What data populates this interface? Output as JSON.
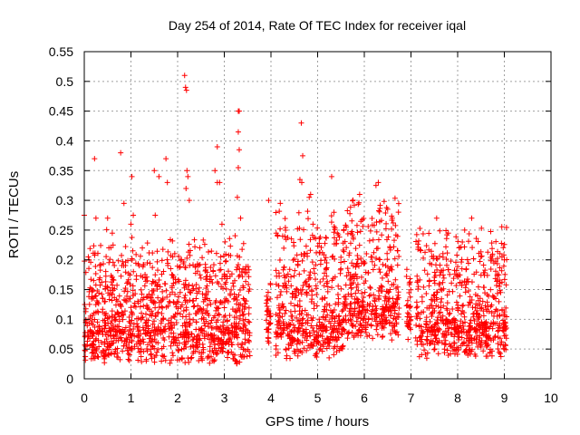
{
  "chart_data": {
    "type": "scatter",
    "title": "Day 254 of 2014, Rate Of TEC Index for receiver iqal",
    "xlabel": "GPS time / hours",
    "ylabel": "ROTI / TECUs",
    "xlim": [
      0,
      10
    ],
    "ylim": [
      0,
      0.55
    ],
    "x_ticks": [
      "0",
      "1",
      "2",
      "3",
      "4",
      "5",
      "6",
      "7",
      "8",
      "9",
      "10"
    ],
    "y_ticks": [
      "0",
      "0.05",
      "0.1",
      "0.15",
      "0.2",
      "0.25",
      "0.3",
      "0.35",
      "0.4",
      "0.45",
      "0.5",
      "0.55"
    ],
    "grid": true,
    "marker": "+",
    "color": "#ff0000",
    "series": [
      {
        "name": "ROTI",
        "segments": [
          {
            "start": 0.0,
            "end": 3.55,
            "base": 0.06,
            "spread": 0.17
          },
          {
            "start": 3.9,
            "end": 4.0,
            "base": 0.09,
            "spread": 0.05
          },
          {
            "start": 4.1,
            "end": 5.55,
            "base": 0.07,
            "spread": 0.2
          },
          {
            "start": 5.55,
            "end": 6.75,
            "base": 0.1,
            "spread": 0.2
          },
          {
            "start": 6.9,
            "end": 7.0,
            "base": 0.1,
            "spread": 0.08
          },
          {
            "start": 7.1,
            "end": 9.05,
            "base": 0.07,
            "spread": 0.17
          }
        ],
        "peaks": [
          {
            "x": 0.0,
            "y": 0.275
          },
          {
            "x": 0.1,
            "y": 0.2
          },
          {
            "x": 0.22,
            "y": 0.37
          },
          {
            "x": 0.25,
            "y": 0.27
          },
          {
            "x": 0.5,
            "y": 0.27
          },
          {
            "x": 0.6,
            "y": 0.245
          },
          {
            "x": 0.78,
            "y": 0.38
          },
          {
            "x": 0.85,
            "y": 0.295
          },
          {
            "x": 1.0,
            "y": 0.26
          },
          {
            "x": 1.02,
            "y": 0.34
          },
          {
            "x": 1.05,
            "y": 0.275
          },
          {
            "x": 1.5,
            "y": 0.35
          },
          {
            "x": 1.52,
            "y": 0.275
          },
          {
            "x": 1.6,
            "y": 0.34
          },
          {
            "x": 1.75,
            "y": 0.37
          },
          {
            "x": 1.78,
            "y": 0.33
          },
          {
            "x": 2.15,
            "y": 0.51
          },
          {
            "x": 2.17,
            "y": 0.49
          },
          {
            "x": 2.19,
            "y": 0.485
          },
          {
            "x": 2.2,
            "y": 0.35
          },
          {
            "x": 2.22,
            "y": 0.34
          },
          {
            "x": 2.18,
            "y": 0.32
          },
          {
            "x": 2.25,
            "y": 0.3
          },
          {
            "x": 2.85,
            "y": 0.39
          },
          {
            "x": 2.8,
            "y": 0.35
          },
          {
            "x": 2.85,
            "y": 0.33
          },
          {
            "x": 2.9,
            "y": 0.33
          },
          {
            "x": 2.95,
            "y": 0.26
          },
          {
            "x": 3.3,
            "y": 0.45
          },
          {
            "x": 3.32,
            "y": 0.45
          },
          {
            "x": 3.3,
            "y": 0.415
          },
          {
            "x": 3.32,
            "y": 0.385
          },
          {
            "x": 3.3,
            "y": 0.355
          },
          {
            "x": 3.28,
            "y": 0.305
          },
          {
            "x": 3.35,
            "y": 0.27
          },
          {
            "x": 3.95,
            "y": 0.3
          },
          {
            "x": 4.2,
            "y": 0.295
          },
          {
            "x": 4.25,
            "y": 0.24
          },
          {
            "x": 4.65,
            "y": 0.43
          },
          {
            "x": 4.68,
            "y": 0.375
          },
          {
            "x": 4.62,
            "y": 0.335
          },
          {
            "x": 4.66,
            "y": 0.33
          },
          {
            "x": 4.85,
            "y": 0.31
          },
          {
            "x": 4.82,
            "y": 0.305
          },
          {
            "x": 4.9,
            "y": 0.26
          },
          {
            "x": 5.3,
            "y": 0.34
          },
          {
            "x": 5.35,
            "y": 0.28
          },
          {
            "x": 5.9,
            "y": 0.31
          },
          {
            "x": 6.3,
            "y": 0.33
          },
          {
            "x": 6.25,
            "y": 0.325
          },
          {
            "x": 6.5,
            "y": 0.285
          },
          {
            "x": 6.6,
            "y": 0.27
          },
          {
            "x": 7.55,
            "y": 0.27
          },
          {
            "x": 7.8,
            "y": 0.245
          },
          {
            "x": 8.15,
            "y": 0.25
          },
          {
            "x": 8.3,
            "y": 0.27
          },
          {
            "x": 8.1,
            "y": 0.23
          },
          {
            "x": 8.95,
            "y": 0.205
          },
          {
            "x": 9.0,
            "y": 0.2
          }
        ]
      }
    ]
  }
}
